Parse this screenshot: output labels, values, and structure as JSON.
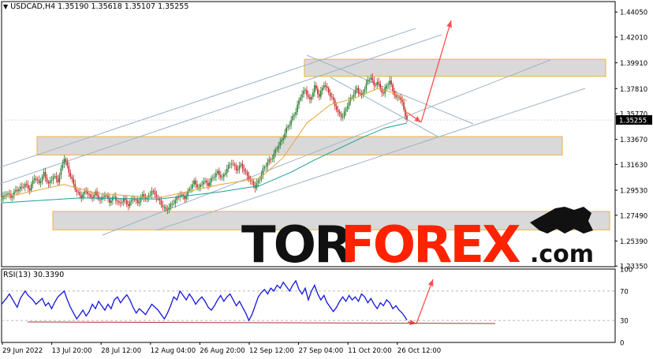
{
  "header": {
    "symbol_line": "USDCAD,H4  1.35190 1.35618 1.35107 1.35255",
    "current_price": "1.35255"
  },
  "watermark": {
    "part1": "TOR",
    "part2": "FOREX",
    "suffix": ".com"
  },
  "colors": {
    "candle_up": "#2e7d32",
    "candle_down": "#c62828",
    "ma_fast": "#e8a33a",
    "ma_slow": "#1e9e96",
    "zone_fill": "#d9d9d9",
    "zone_border": "#f0b040",
    "channel": "#9db4c8",
    "forecast_arrow": "#ff4d4d",
    "rsi_line": "#1515e0",
    "rsi_support": "#b03030",
    "watermark_dark": "#111111",
    "watermark_red": "#ff2200"
  },
  "chart_data": [
    {
      "type": "candlestick",
      "symbol": "USDCAD",
      "timeframe": "H4",
      "ohlc_last": {
        "open": 1.3519,
        "high": 1.35618,
        "low": 1.35107,
        "close": 1.35255
      },
      "ylim": [
        1.233,
        1.449
      ],
      "y_ticks": [
        "1.44050",
        "1.42010",
        "1.39910",
        "1.37810",
        "1.35770",
        "1.33670",
        "1.31630",
        "1.29530",
        "1.27490",
        "1.25390",
        "1.23350"
      ],
      "x_ticks": [
        "29 Jun 2022",
        "13 Jul 20:00",
        "28 Jul 12:00",
        "12 Aug 04:00",
        "26 Aug 20:00",
        "12 Sep 12:00",
        "27 Sep 04:00",
        "11 Oct 20:00",
        "26 Oct 12:00"
      ],
      "close_path": [
        [
          0,
          1.288
        ],
        [
          3,
          1.293
        ],
        [
          6,
          1.29
        ],
        [
          9,
          1.295
        ],
        [
          12,
          1.297
        ],
        [
          15,
          1.3
        ],
        [
          18,
          1.296
        ],
        [
          21,
          1.306
        ],
        [
          24,
          1.301
        ],
        [
          27,
          1.309
        ],
        [
          30,
          1.3
        ],
        [
          33,
          1.307
        ],
        [
          36,
          1.303
        ],
        [
          38,
          1.312
        ],
        [
          40,
          1.322
        ],
        [
          42,
          1.314
        ],
        [
          44,
          1.307
        ],
        [
          46,
          1.3
        ],
        [
          48,
          1.294
        ],
        [
          51,
          1.29
        ],
        [
          54,
          1.295
        ],
        [
          57,
          1.289
        ],
        [
          60,
          1.293
        ],
        [
          63,
          1.287
        ],
        [
          66,
          1.292
        ],
        [
          69,
          1.286
        ],
        [
          72,
          1.29
        ],
        [
          75,
          1.284
        ],
        [
          78,
          1.288
        ],
        [
          81,
          1.283
        ],
        [
          84,
          1.289
        ],
        [
          87,
          1.285
        ],
        [
          90,
          1.291
        ],
        [
          93,
          1.288
        ],
        [
          96,
          1.295
        ],
        [
          99,
          1.29
        ],
        [
          102,
          1.284
        ],
        [
          105,
          1.279
        ],
        [
          108,
          1.283
        ],
        [
          111,
          1.287
        ],
        [
          114,
          1.292
        ],
        [
          117,
          1.289
        ],
        [
          120,
          1.296
        ],
        [
          123,
          1.302
        ],
        [
          126,
          1.297
        ],
        [
          129,
          1.303
        ],
        [
          132,
          1.3
        ],
        [
          135,
          1.306
        ],
        [
          138,
          1.31
        ],
        [
          141,
          1.305
        ],
        [
          144,
          1.313
        ],
        [
          147,
          1.318
        ],
        [
          150,
          1.312
        ],
        [
          153,
          1.316
        ],
        [
          156,
          1.309
        ],
        [
          159,
          1.303
        ],
        [
          162,
          1.298
        ],
        [
          165,
          1.305
        ],
        [
          167,
          1.312
        ],
        [
          170,
          1.318
        ],
        [
          173,
          1.322
        ],
        [
          176,
          1.33
        ],
        [
          179,
          1.336
        ],
        [
          182,
          1.345
        ],
        [
          185,
          1.352
        ],
        [
          188,
          1.36
        ],
        [
          191,
          1.372
        ],
        [
          194,
          1.377
        ],
        [
          197,
          1.368
        ],
        [
          200,
          1.38
        ],
        [
          203,
          1.372
        ],
        [
          206,
          1.382
        ],
        [
          209,
          1.375
        ],
        [
          212,
          1.368
        ],
        [
          215,
          1.358
        ],
        [
          218,
          1.355
        ],
        [
          221,
          1.365
        ],
        [
          224,
          1.372
        ],
        [
          227,
          1.378
        ],
        [
          230,
          1.372
        ],
        [
          233,
          1.382
        ],
        [
          236,
          1.388
        ],
        [
          238,
          1.38
        ],
        [
          240,
          1.384
        ],
        [
          242,
          1.378
        ],
        [
          244,
          1.374
        ],
        [
          246,
          1.381
        ],
        [
          248,
          1.384
        ],
        [
          250,
          1.377
        ],
        [
          252,
          1.37
        ],
        [
          254,
          1.372
        ],
        [
          256,
          1.366
        ],
        [
          258,
          1.357
        ],
        [
          259,
          1.3525
        ]
      ],
      "series": [
        {
          "name": "",
          "kind": "ma_fast",
          "points": [
            [
              0,
              1.289
            ],
            [
              40,
              1.3
            ],
            [
              60,
              1.293
            ],
            [
              100,
              1.289
            ],
            [
              140,
              1.3
            ],
            [
              165,
              1.305
            ],
            [
              180,
              1.322
            ],
            [
              195,
              1.35
            ],
            [
              210,
              1.365
            ],
            [
              225,
              1.37
            ],
            [
              240,
              1.378
            ],
            [
              250,
              1.375
            ],
            [
              259,
              1.368
            ]
          ]
        },
        {
          "name": "",
          "kind": "ma_slow",
          "points": [
            [
              0,
              1.285
            ],
            [
              50,
              1.289
            ],
            [
              100,
              1.288
            ],
            [
              140,
              1.294
            ],
            [
              165,
              1.299
            ],
            [
              185,
              1.31
            ],
            [
              200,
              1.32
            ],
            [
              215,
              1.329
            ],
            [
              230,
              1.338
            ],
            [
              245,
              1.346
            ],
            [
              259,
              1.35
            ]
          ]
        }
      ],
      "zones": [
        {
          "from": 1.388,
          "to": 1.402
        },
        {
          "from": 1.324,
          "to": 1.339
        },
        {
          "from": 1.263,
          "to": 1.278
        }
      ]
    },
    {
      "type": "line",
      "title": "RSI(13) 30.3390",
      "ylim": [
        0,
        100
      ],
      "y_ticks": [
        "100",
        "70",
        "30",
        "0"
      ],
      "levels": [
        70,
        30
      ],
      "values": [
        [
          0,
          52
        ],
        [
          3,
          60
        ],
        [
          5,
          66
        ],
        [
          8,
          55
        ],
        [
          10,
          48
        ],
        [
          12,
          60
        ],
        [
          15,
          70
        ],
        [
          17,
          64
        ],
        [
          20,
          58
        ],
        [
          22,
          52
        ],
        [
          24,
          56
        ],
        [
          26,
          60
        ],
        [
          28,
          50
        ],
        [
          30,
          54
        ],
        [
          32,
          46
        ],
        [
          34,
          55
        ],
        [
          36,
          62
        ],
        [
          38,
          66
        ],
        [
          40,
          70
        ],
        [
          42,
          58
        ],
        [
          44,
          48
        ],
        [
          46,
          40
        ],
        [
          48,
          32
        ],
        [
          50,
          38
        ],
        [
          52,
          44
        ],
        [
          54,
          36
        ],
        [
          56,
          42
        ],
        [
          58,
          52
        ],
        [
          60,
          46
        ],
        [
          62,
          56
        ],
        [
          64,
          50
        ],
        [
          66,
          44
        ],
        [
          68,
          52
        ],
        [
          70,
          46
        ],
        [
          72,
          58
        ],
        [
          74,
          62
        ],
        [
          76,
          54
        ],
        [
          78,
          60
        ],
        [
          80,
          65
        ],
        [
          82,
          58
        ],
        [
          84,
          48
        ],
        [
          86,
          40
        ],
        [
          88,
          46
        ],
        [
          90,
          42
        ],
        [
          92,
          38
        ],
        [
          94,
          45
        ],
        [
          96,
          52
        ],
        [
          98,
          48
        ],
        [
          100,
          44
        ],
        [
          102,
          38
        ],
        [
          104,
          32
        ],
        [
          106,
          40
        ],
        [
          108,
          50
        ],
        [
          110,
          62
        ],
        [
          112,
          58
        ],
        [
          114,
          70
        ],
        [
          116,
          64
        ],
        [
          118,
          58
        ],
        [
          120,
          66
        ],
        [
          122,
          60
        ],
        [
          124,
          52
        ],
        [
          126,
          58
        ],
        [
          128,
          62
        ],
        [
          130,
          56
        ],
        [
          132,
          48
        ],
        [
          134,
          44
        ],
        [
          136,
          50
        ],
        [
          138,
          58
        ],
        [
          140,
          64
        ],
        [
          142,
          56
        ],
        [
          144,
          62
        ],
        [
          146,
          66
        ],
        [
          148,
          58
        ],
        [
          150,
          50
        ],
        [
          152,
          56
        ],
        [
          154,
          48
        ],
        [
          156,
          40
        ],
        [
          158,
          30
        ],
        [
          160,
          38
        ],
        [
          162,
          50
        ],
        [
          164,
          62
        ],
        [
          166,
          68
        ],
        [
          168,
          72
        ],
        [
          170,
          66
        ],
        [
          172,
          74
        ],
        [
          174,
          70
        ],
        [
          176,
          78
        ],
        [
          178,
          74
        ],
        [
          180,
          82
        ],
        [
          182,
          76
        ],
        [
          184,
          70
        ],
        [
          186,
          78
        ],
        [
          188,
          84
        ],
        [
          190,
          72
        ],
        [
          192,
          66
        ],
        [
          194,
          74
        ],
        [
          196,
          58
        ],
        [
          198,
          70
        ],
        [
          200,
          78
        ],
        [
          202,
          66
        ],
        [
          204,
          58
        ],
        [
          206,
          64
        ],
        [
          208,
          54
        ],
        [
          210,
          48
        ],
        [
          212,
          42
        ],
        [
          214,
          48
        ],
        [
          216,
          56
        ],
        [
          218,
          62
        ],
        [
          220,
          56
        ],
        [
          222,
          64
        ],
        [
          224,
          58
        ],
        [
          226,
          62
        ],
        [
          228,
          56
        ],
        [
          230,
          66
        ],
        [
          232,
          62
        ],
        [
          234,
          54
        ],
        [
          236,
          60
        ],
        [
          238,
          52
        ],
        [
          240,
          46
        ],
        [
          242,
          54
        ],
        [
          244,
          50
        ],
        [
          246,
          58
        ],
        [
          248,
          54
        ],
        [
          250,
          46
        ],
        [
          252,
          50
        ],
        [
          254,
          44
        ],
        [
          256,
          40
        ],
        [
          258,
          34
        ],
        [
          259,
          30.339
        ]
      ]
    }
  ]
}
